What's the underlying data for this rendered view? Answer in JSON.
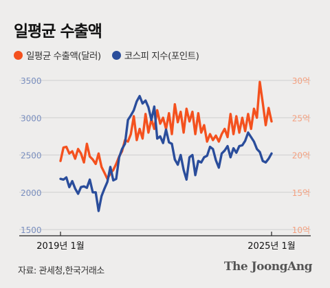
{
  "title": "일평균 수출액",
  "legend": [
    {
      "label": "일평균 수출액(달러)",
      "color": "#f4511e"
    },
    {
      "label": "코스피 지수(포인트)",
      "color": "#2a4d9b"
    }
  ],
  "source": "자료: 관세청,한국거래소",
  "brand": "The JoongAng",
  "chart_data": {
    "type": "line",
    "x_ticks": [
      "2019년 1월",
      "2025년 1월"
    ],
    "y_left": {
      "range": [
        1500,
        3500
      ],
      "ticks": [
        "1500",
        "2000",
        "2500",
        "3000",
        "3500"
      ],
      "color": "#7a8fbf"
    },
    "y_right": {
      "range": [
        10,
        30
      ],
      "ticks": [
        "10억",
        "15억",
        "20억",
        "25억",
        "30억"
      ],
      "color": "#f4a07f"
    },
    "grid": "horizontal",
    "series": [
      {
        "name": "일평균 수출액(달러)",
        "axis": "right",
        "color": "#f4511e",
        "values": [
          19.2,
          21.0,
          21.1,
          20.2,
          20.5,
          19.5,
          20.8,
          20.2,
          19.0,
          21.5,
          19.8,
          19.4,
          18.8,
          20.2,
          18.4,
          17.6,
          16.8,
          17.5,
          18.0,
          18.8,
          19.8,
          20.5,
          22.0,
          21.8,
          22.8,
          25.2,
          22.0,
          23.5,
          22.2,
          25.5,
          23.0,
          24.8,
          23.5,
          26.0,
          24.2,
          25.0,
          23.5,
          25.6,
          22.8,
          26.8,
          24.4,
          25.8,
          23.0,
          26.2,
          24.5,
          25.8,
          22.8,
          25.6,
          23.0,
          24.0,
          21.8,
          22.8,
          22.0,
          22.6,
          21.8,
          22.8,
          23.5,
          22.4,
          25.5,
          22.8,
          25.2,
          23.0,
          25.0,
          23.2,
          25.5,
          23.5,
          26.2,
          25.0,
          29.8,
          27.0,
          24.0,
          26.3,
          24.5
        ]
      },
      {
        "name": "코스피 지수(포인트)",
        "axis": "left",
        "color": "#2a4d9b",
        "values": [
          2180,
          2170,
          2200,
          2070,
          2150,
          2050,
          1980,
          2070,
          2080,
          2060,
          2170,
          2000,
          2000,
          1750,
          1950,
          2050,
          2140,
          2340,
          2160,
          2180,
          2470,
          2580,
          2650,
          2970,
          3030,
          3100,
          3220,
          3290,
          3190,
          3230,
          3140,
          2970,
          3150,
          2720,
          2750,
          2660,
          2840,
          2670,
          2650,
          2440,
          2370,
          2500,
          2300,
          2170,
          2470,
          2500,
          2230,
          2420,
          2400,
          2470,
          2490,
          2610,
          2580,
          2430,
          2330,
          2520,
          2560,
          2620,
          2470,
          2590,
          2530,
          2620,
          2630,
          2690,
          2800,
          2740,
          2680,
          2580,
          2540,
          2420,
          2400,
          2450,
          2520
        ]
      }
    ]
  }
}
